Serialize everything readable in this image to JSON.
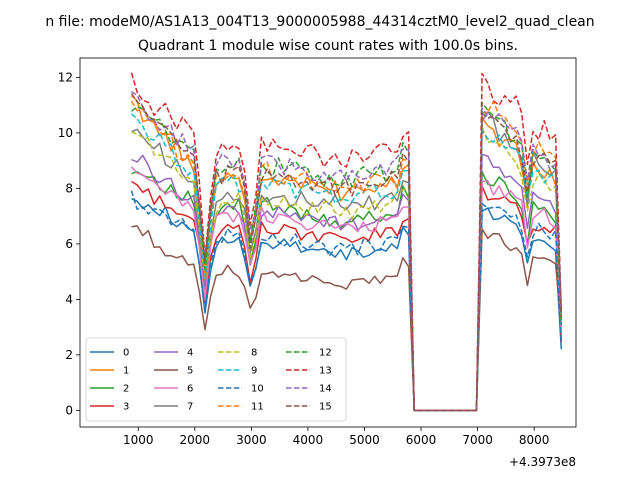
{
  "figure": {
    "suptitle": "n file: modeM0/AS1A13_004T13_9000005988_44314cztM0_level2_quad_clean",
    "offset_label": "+4.3973e8"
  },
  "chart_data": {
    "type": "line",
    "title": "Quadrant 1 module wise count rates with 100.0s bins.",
    "xlabel": "",
    "ylabel": "",
    "x_offset": 439730000,
    "xlim": [
      -30,
      8740
    ],
    "ylim": [
      -0.6,
      12.7
    ],
    "xticks": [
      1000,
      2000,
      3000,
      4000,
      5000,
      6000,
      7000,
      8000
    ],
    "yticks": [
      0,
      2,
      4,
      6,
      8,
      10,
      12
    ],
    "grid": false,
    "legend": {
      "placement": "lower-left",
      "columns": 4
    },
    "segments": [
      {
        "start": 880,
        "end": 5780,
        "n": 50
      },
      {
        "start": 5880,
        "end": 6980,
        "n": 12
      },
      {
        "start": 7080,
        "end": 8480,
        "n": 15
      }
    ],
    "series": [
      {
        "name": "0",
        "color": "#1f77b4",
        "dash": false,
        "a": 7.85,
        "b": 5.85,
        "c": 7.3,
        "deep": 2.1
      },
      {
        "name": "1",
        "color": "#ff7f0e",
        "dash": false,
        "a": 11.1,
        "b": 8.2,
        "c": 10.3,
        "deep": 3.0
      },
      {
        "name": "2",
        "color": "#2ca02c",
        "dash": false,
        "a": 8.8,
        "b": 7.1,
        "c": 8.5,
        "deep": 2.6
      },
      {
        "name": "3",
        "color": "#d62728",
        "dash": false,
        "a": 8.2,
        "b": 6.4,
        "c": 7.9,
        "deep": 2.3
      },
      {
        "name": "4",
        "color": "#9467bd",
        "dash": false,
        "a": 9.2,
        "b": 7.0,
        "c": 9.1,
        "deep": 2.7
      },
      {
        "name": "5",
        "color": "#8c564b",
        "dash": false,
        "a": 6.6,
        "b": 4.8,
        "c": 6.4,
        "deep": 2.6
      },
      {
        "name": "6",
        "color": "#e377c2",
        "dash": false,
        "a": 8.6,
        "b": 6.8,
        "c": 8.3,
        "deep": 2.4
      },
      {
        "name": "7",
        "color": "#7f7f7f",
        "dash": false,
        "a": 10.3,
        "b": 7.6,
        "c": 10.6,
        "deep": 3.0
      },
      {
        "name": "8",
        "color": "#bcbd22",
        "dash": true,
        "a": 10.2,
        "b": 7.4,
        "c": 9.9,
        "deep": 2.8
      },
      {
        "name": "9",
        "color": "#17becf",
        "dash": true,
        "a": 10.6,
        "b": 8.0,
        "c": 10.1,
        "deep": 2.9
      },
      {
        "name": "10",
        "color": "#1f77b4",
        "dash": true,
        "a": 7.6,
        "b": 6.1,
        "c": 7.6,
        "deep": 2.4
      },
      {
        "name": "11",
        "color": "#ff7f0e",
        "dash": true,
        "a": 10.9,
        "b": 8.3,
        "c": 11.0,
        "deep": 3.0
      },
      {
        "name": "12",
        "color": "#2ca02c",
        "dash": true,
        "a": 11.1,
        "b": 8.6,
        "c": 10.8,
        "deep": 3.0
      },
      {
        "name": "13",
        "color": "#d62728",
        "dash": true,
        "a": 11.8,
        "b": 9.3,
        "c": 11.9,
        "deep": 3.3
      },
      {
        "name": "14",
        "color": "#9467bd",
        "dash": true,
        "a": 11.2,
        "b": 8.7,
        "c": 10.9,
        "deep": 3.1
      },
      {
        "name": "15",
        "color": "#8c564b",
        "dash": true,
        "a": 11.4,
        "b": 8.3,
        "c": 10.7,
        "deep": 3.0
      }
    ]
  }
}
